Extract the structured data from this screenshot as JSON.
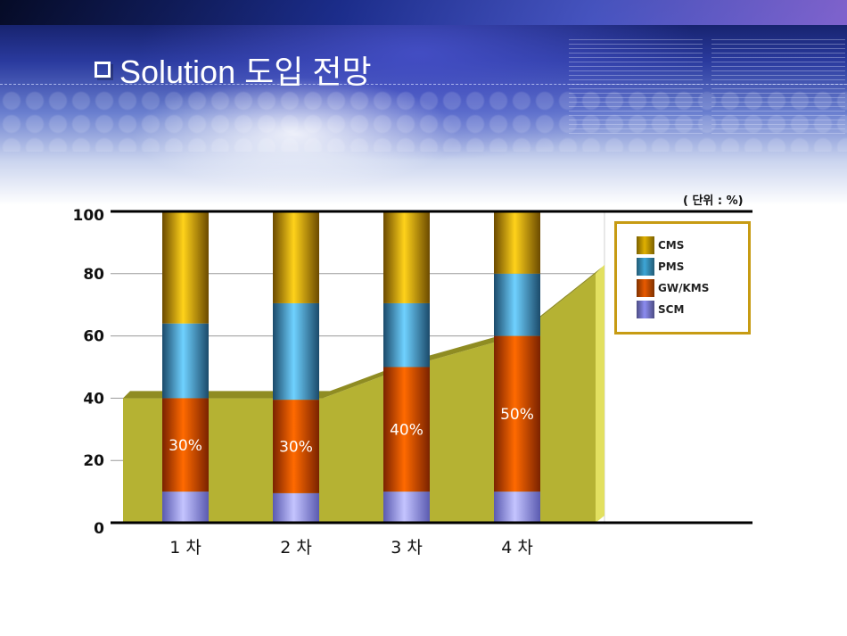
{
  "title": "Solution 도입 전망",
  "unit_label": "( 단위 : %)",
  "chart_data": {
    "type": "bar",
    "stacked": true,
    "categories": [
      "1 차",
      "2 차",
      "3 차",
      "4 차"
    ],
    "ylim": [
      0,
      100
    ],
    "yticks": [
      0,
      20,
      40,
      60,
      80,
      100
    ],
    "grid": true,
    "legend_position": "right",
    "series": [
      {
        "name": "SCM",
        "values": [
          10,
          9.5,
          10,
          10
        ],
        "color": "#8c8cf0"
      },
      {
        "name": "GW/KMS",
        "values": [
          30,
          30,
          40,
          50
        ],
        "color": "#e85a00"
      },
      {
        "name": "PMS",
        "values": [
          24,
          31,
          20.5,
          20
        ],
        "color": "#3ea6d6"
      },
      {
        "name": "CMS",
        "values": [
          36,
          29.5,
          29.5,
          20
        ],
        "color": "#e0b000"
      }
    ],
    "data_labels": [
      "30%",
      "30%",
      "40%",
      "50%"
    ],
    "background_area": {
      "values_at_bars": [
        40,
        40,
        50,
        60
      ],
      "end_value": 80,
      "color": "#b5b233"
    }
  },
  "legend_order": [
    "CMS",
    "PMS",
    "GW/KMS",
    "SCM"
  ]
}
